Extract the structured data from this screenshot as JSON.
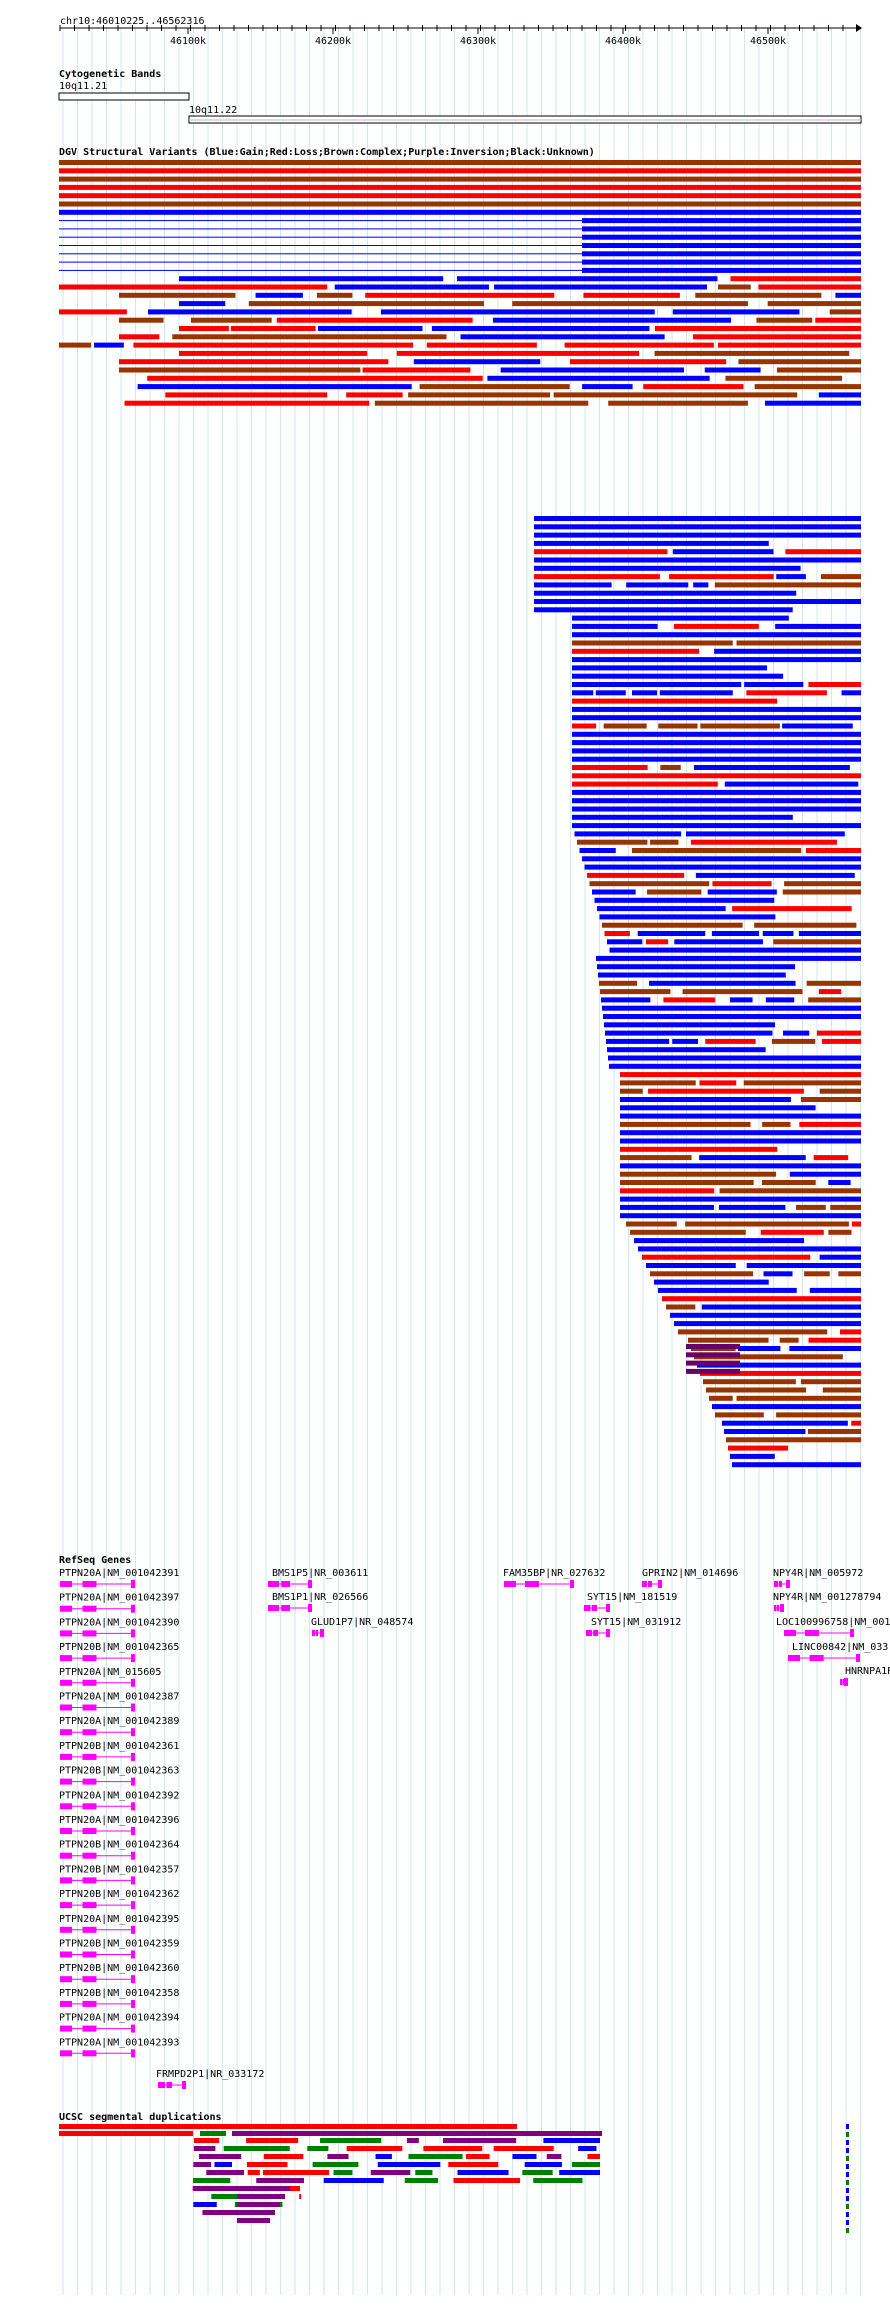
{
  "position_label": "chr10:46010225..46562316",
  "ruler": {
    "ticks": [
      {
        "label": "46100k",
        "bp": 46100000
      },
      {
        "label": "46200k",
        "bp": 46200000
      },
      {
        "label": "46300k",
        "bp": 46300000
      },
      {
        "label": "46400k",
        "bp": 46400000
      },
      {
        "label": "46500k",
        "bp": 46500000
      }
    ]
  },
  "colors": {
    "gain": "#0000ff",
    "loss": "#ff0000",
    "complex": "#993300",
    "inversion": "#660066",
    "unknown": "#000000",
    "gene": "#ff00ff",
    "segdup_red": "#ff0000",
    "segdup_purple": "#800080",
    "segdup_green": "#008000",
    "segdup_blue": "#0000ff",
    "gridline": "#add8e6"
  },
  "tracks": {
    "cytoband": {
      "title": "Cytogenetic Bands",
      "bands": [
        {
          "name": "10q11.21"
        },
        {
          "name": "10q11.22"
        }
      ]
    },
    "dgv": {
      "title": "DGV Structural Variants (Blue:Gain;Red:Loss;Brown:Complex;Purple:Inversion;Black:Unknown)"
    },
    "refseq": {
      "title": "RefSeq Genes",
      "labels": [
        "PTPN20A|NM_001042391",
        "PTPN20A|NM_001042397",
        "PTPN20A|NM_001042390",
        "PTPN20B|NM_001042365",
        "PTPN20A|NM_015605",
        "PTPN20A|NM_001042387",
        "PTPN20A|NM_001042389",
        "PTPN20B|NM_001042361",
        "PTPN20B|NM_001042363",
        "PTPN20A|NM_001042392",
        "PTPN20A|NM_001042396",
        "PTPN20B|NM_001042364",
        "PTPN20B|NM_001042357",
        "PTPN20B|NM_001042362",
        "PTPN20A|NM_001042395",
        "PTPN20B|NM_001042359",
        "PTPN20B|NM_001042360",
        "PTPN20B|NM_001042358",
        "PTPN20A|NM_001042394",
        "PTPN20A|NM_001042393",
        "FRMPD2P1|NR_033172",
        "BMS1P5|NR_003611",
        "BMS1P1|NR_026566",
        "GLUD1P7|NR_048574",
        "FAM35BP|NR_027632",
        "SYT15|NM_181519",
        "SYT15|NM_031912",
        "GPRIN2|NM_014696",
        "NPY4R|NM_005972",
        "NPY4R|NM_001278794",
        "LOC100996758|NM_001",
        "LINC00842|NM_033",
        "HNRNPA1P"
      ]
    },
    "segdup": {
      "title": "UCSC segmental duplications"
    }
  }
}
